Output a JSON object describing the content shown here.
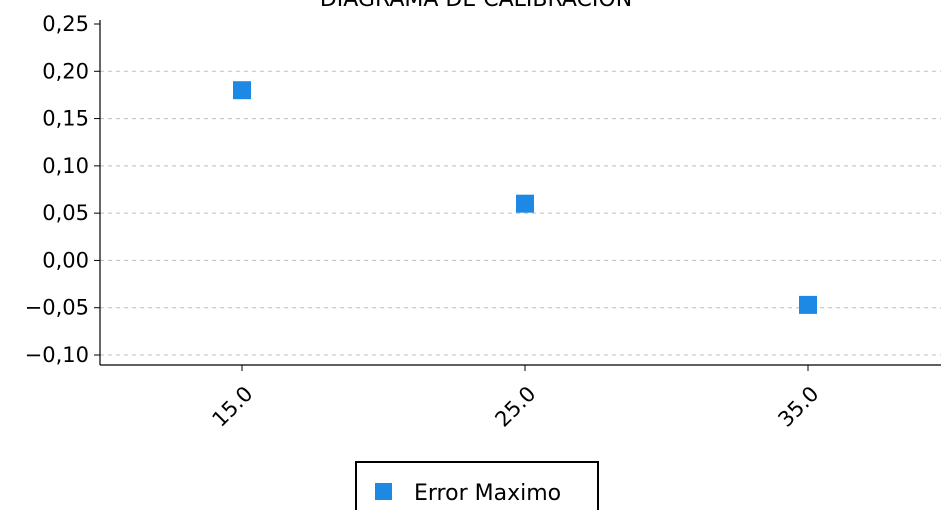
{
  "chart_data": {
    "type": "scatter",
    "title": "DIAGRAMA DE CALIBRACION",
    "xlabel": "",
    "ylabel": "",
    "categories": [
      "15.0",
      "25.0",
      "35.0"
    ],
    "series": [
      {
        "name": "Error Maximo",
        "color": "#1e88e5",
        "values": [
          0.18,
          0.06,
          -0.047
        ]
      }
    ],
    "y_ticks": [
      "0,25",
      "0,20",
      "0,15",
      "0,10",
      "0,05",
      "0,00",
      "−0,05",
      "−0,10"
    ],
    "ylim": [
      -0.11,
      0.25
    ],
    "grid": true,
    "legend_position": "bottom-center"
  }
}
